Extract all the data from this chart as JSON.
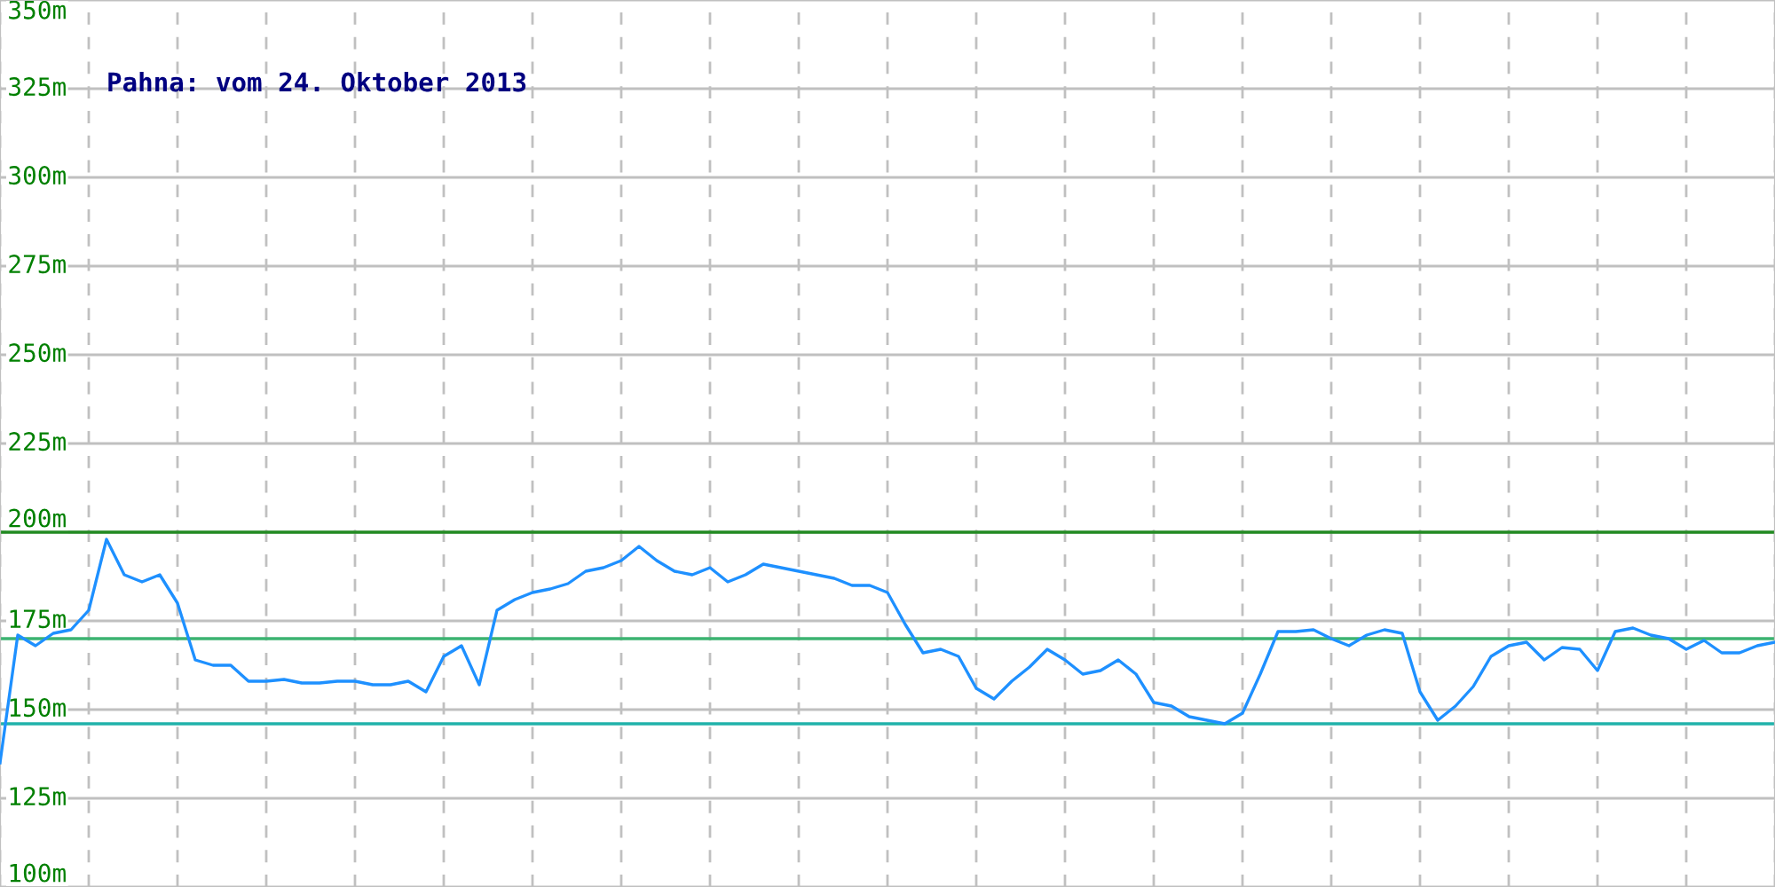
{
  "chart_data": {
    "type": "line",
    "title": "Pahna: vom 24. Oktober 2013",
    "categories": [
      null,
      null,
      null,
      null,
      null,
      null,
      null,
      null,
      null,
      null,
      null,
      null,
      null,
      null,
      null,
      null,
      null,
      null,
      null,
      null,
      null,
      null,
      null,
      null,
      null,
      null,
      null,
      null,
      null,
      null,
      null,
      null,
      null,
      null,
      null,
      null,
      null,
      null,
      null,
      null,
      null,
      null,
      null,
      null,
      null,
      null,
      null,
      null,
      null,
      null,
      null,
      null,
      null,
      null,
      null,
      null,
      null,
      null,
      null,
      null,
      null,
      null,
      null,
      null,
      null,
      null,
      null,
      null,
      null,
      null,
      null,
      null,
      null,
      null,
      null,
      null,
      null,
      null,
      null,
      null,
      null,
      null,
      null,
      null,
      null,
      null,
      null,
      null,
      null,
      null,
      null,
      null,
      null,
      null,
      null,
      null,
      null,
      null,
      null,
      null,
      null
    ],
    "series": [
      {
        "color": "#1e90ff",
        "values": [
          135,
          171,
          168,
          171.5,
          172.5,
          178,
          198,
          188,
          186,
          188,
          180,
          164,
          162.5,
          162.5,
          158,
          158,
          158.5,
          157.5,
          157.5,
          158,
          158,
          157,
          157,
          158,
          155,
          165,
          168,
          157,
          178,
          181,
          183,
          184,
          185.5,
          189,
          190,
          192,
          196,
          192,
          189,
          188,
          190,
          186,
          188,
          191,
          190,
          189,
          188,
          187,
          185,
          185,
          183,
          174,
          166,
          167,
          165,
          156,
          153,
          158,
          162,
          167,
          164,
          160,
          161,
          164,
          160,
          152,
          151,
          148,
          147,
          146,
          149,
          160,
          172,
          172,
          172.5,
          170,
          168,
          171,
          172.5,
          171.5,
          155,
          147,
          151,
          156.5,
          165,
          168,
          169,
          164,
          167.5,
          167,
          161,
          172,
          173,
          171,
          170,
          167,
          169.5,
          166,
          166,
          168,
          169
        ]
      }
    ],
    "ylim": [
      100,
      350
    ],
    "yticks": [
      {
        "value": 100,
        "label": "100m"
      },
      {
        "value": 125,
        "label": "125m"
      },
      {
        "value": 150,
        "label": "150m"
      },
      {
        "value": 175,
        "label": "175m"
      },
      {
        "value": 200,
        "label": "200m"
      },
      {
        "value": 225,
        "label": "225m"
      },
      {
        "value": 250,
        "label": "250m"
      },
      {
        "value": 275,
        "label": "275m"
      },
      {
        "value": 300,
        "label": "300m"
      },
      {
        "value": 325,
        "label": "325m"
      },
      {
        "value": 350,
        "label": "350m"
      }
    ],
    "grid": true,
    "ref_lines": [
      {
        "axis": "y",
        "value": 200,
        "color": "#228b22"
      },
      {
        "axis": "y",
        "value": 170,
        "color": "#3cb371"
      },
      {
        "axis": "y",
        "value": 146,
        "color": "#20b2aa"
      }
    ]
  }
}
